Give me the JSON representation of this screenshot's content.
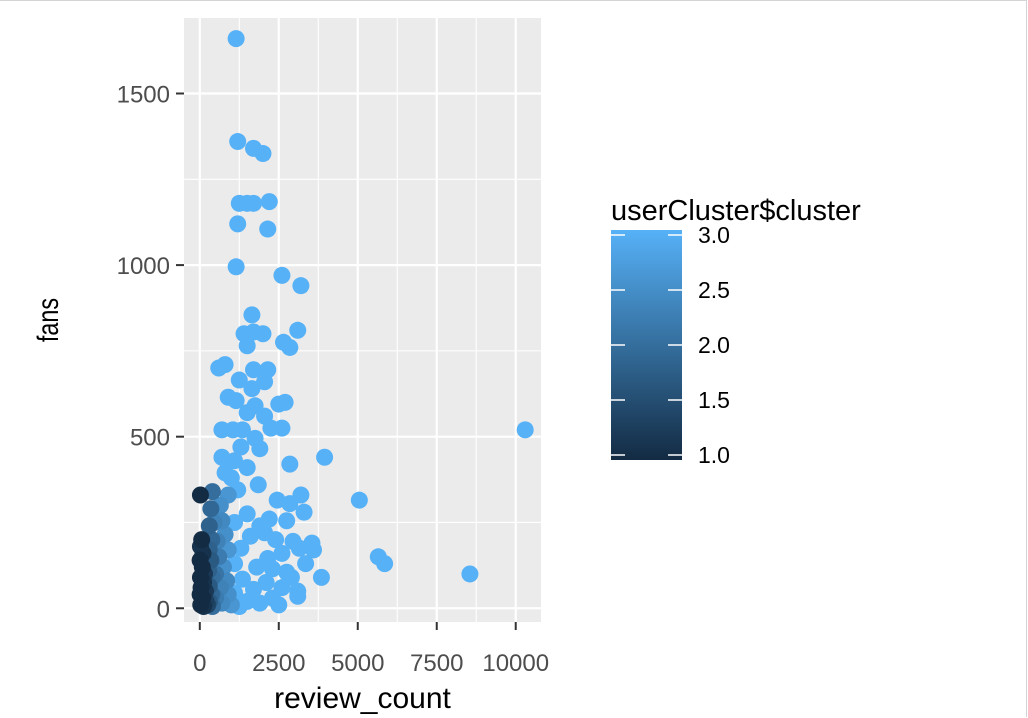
{
  "chart_data": {
    "type": "scatter",
    "xlabel": "review_count",
    "ylabel": "fans",
    "xlim": [
      -500,
      10800
    ],
    "ylim": [
      -40,
      1720
    ],
    "x_ticks": [
      0,
      2500,
      5000,
      7500,
      10000
    ],
    "x_tick_labels": [
      "0",
      "2500",
      "5000",
      "7500",
      "10000"
    ],
    "y_ticks": [
      0,
      500,
      1000,
      1500
    ],
    "y_tick_labels": [
      "0",
      "500",
      "1000",
      "1500"
    ],
    "grid": true,
    "legend": {
      "title": "userCluster$cluster",
      "placement": "right",
      "type": "colorbar",
      "range": [
        1.0,
        3.0
      ],
      "breaks": [
        1.0,
        1.5,
        2.0,
        2.5,
        3.0
      ],
      "break_labels": [
        "1.0",
        "1.5",
        "2.0",
        "2.5",
        "3.0"
      ],
      "low_color": "#132B43",
      "high_color": "#56B1F7"
    },
    "points": [
      {
        "x": 1150,
        "y": 1660,
        "c": 3
      },
      {
        "x": 1200,
        "y": 1360,
        "c": 3
      },
      {
        "x": 1700,
        "y": 1340,
        "c": 3
      },
      {
        "x": 2000,
        "y": 1325,
        "c": 3
      },
      {
        "x": 1250,
        "y": 1180,
        "c": 3
      },
      {
        "x": 1500,
        "y": 1180,
        "c": 3
      },
      {
        "x": 1700,
        "y": 1180,
        "c": 3
      },
      {
        "x": 2200,
        "y": 1185,
        "c": 3
      },
      {
        "x": 1200,
        "y": 1120,
        "c": 3
      },
      {
        "x": 2150,
        "y": 1105,
        "c": 3
      },
      {
        "x": 1150,
        "y": 995,
        "c": 3
      },
      {
        "x": 2600,
        "y": 970,
        "c": 3
      },
      {
        "x": 3200,
        "y": 940,
        "c": 3
      },
      {
        "x": 1650,
        "y": 855,
        "c": 3
      },
      {
        "x": 3100,
        "y": 810,
        "c": 3
      },
      {
        "x": 1400,
        "y": 800,
        "c": 3
      },
      {
        "x": 1700,
        "y": 805,
        "c": 3
      },
      {
        "x": 2000,
        "y": 800,
        "c": 3
      },
      {
        "x": 2650,
        "y": 775,
        "c": 3
      },
      {
        "x": 2850,
        "y": 760,
        "c": 3
      },
      {
        "x": 1500,
        "y": 765,
        "c": 3
      },
      {
        "x": 600,
        "y": 700,
        "c": 3
      },
      {
        "x": 800,
        "y": 710,
        "c": 3
      },
      {
        "x": 1700,
        "y": 695,
        "c": 3
      },
      {
        "x": 2150,
        "y": 695,
        "c": 3
      },
      {
        "x": 1250,
        "y": 665,
        "c": 3
      },
      {
        "x": 2050,
        "y": 660,
        "c": 3
      },
      {
        "x": 1650,
        "y": 640,
        "c": 3
      },
      {
        "x": 900,
        "y": 615,
        "c": 3
      },
      {
        "x": 1150,
        "y": 605,
        "c": 3
      },
      {
        "x": 1750,
        "y": 590,
        "c": 3
      },
      {
        "x": 2500,
        "y": 595,
        "c": 3
      },
      {
        "x": 2700,
        "y": 600,
        "c": 3
      },
      {
        "x": 1500,
        "y": 570,
        "c": 3
      },
      {
        "x": 2050,
        "y": 560,
        "c": 3
      },
      {
        "x": 700,
        "y": 520,
        "c": 3
      },
      {
        "x": 1050,
        "y": 520,
        "c": 3
      },
      {
        "x": 1350,
        "y": 520,
        "c": 3
      },
      {
        "x": 2250,
        "y": 525,
        "c": 3
      },
      {
        "x": 2600,
        "y": 525,
        "c": 3
      },
      {
        "x": 1750,
        "y": 495,
        "c": 3
      },
      {
        "x": 1300,
        "y": 470,
        "c": 3
      },
      {
        "x": 1900,
        "y": 465,
        "c": 3
      },
      {
        "x": 10300,
        "y": 520,
        "c": 3
      },
      {
        "x": 3950,
        "y": 440,
        "c": 3
      },
      {
        "x": 700,
        "y": 440,
        "c": 3
      },
      {
        "x": 1100,
        "y": 430,
        "c": 3
      },
      {
        "x": 2850,
        "y": 420,
        "c": 3
      },
      {
        "x": 1500,
        "y": 410,
        "c": 3
      },
      {
        "x": 800,
        "y": 395,
        "c": 3
      },
      {
        "x": 1000,
        "y": 380,
        "c": 3
      },
      {
        "x": 1850,
        "y": 360,
        "c": 3
      },
      {
        "x": 1200,
        "y": 345,
        "c": 3
      },
      {
        "x": 3200,
        "y": 330,
        "c": 3
      },
      {
        "x": 2450,
        "y": 315,
        "c": 3
      },
      {
        "x": 5050,
        "y": 315,
        "c": 3
      },
      {
        "x": 2850,
        "y": 305,
        "c": 3
      },
      {
        "x": 3300,
        "y": 280,
        "c": 3
      },
      {
        "x": 1500,
        "y": 275,
        "c": 3
      },
      {
        "x": 2200,
        "y": 260,
        "c": 3
      },
      {
        "x": 2750,
        "y": 255,
        "c": 3
      },
      {
        "x": 1100,
        "y": 250,
        "c": 3
      },
      {
        "x": 1900,
        "y": 240,
        "c": 3
      },
      {
        "x": 2050,
        "y": 220,
        "c": 3
      },
      {
        "x": 1600,
        "y": 210,
        "c": 3
      },
      {
        "x": 2400,
        "y": 200,
        "c": 3
      },
      {
        "x": 2950,
        "y": 195,
        "c": 3
      },
      {
        "x": 3550,
        "y": 190,
        "c": 3
      },
      {
        "x": 3150,
        "y": 175,
        "c": 3
      },
      {
        "x": 3600,
        "y": 170,
        "c": 3
      },
      {
        "x": 1300,
        "y": 175,
        "c": 3
      },
      {
        "x": 2600,
        "y": 160,
        "c": 3
      },
      {
        "x": 5650,
        "y": 150,
        "c": 3
      },
      {
        "x": 2150,
        "y": 145,
        "c": 3
      },
      {
        "x": 3350,
        "y": 130,
        "c": 3
      },
      {
        "x": 5850,
        "y": 130,
        "c": 3
      },
      {
        "x": 1100,
        "y": 130,
        "c": 3
      },
      {
        "x": 1800,
        "y": 120,
        "c": 3
      },
      {
        "x": 2300,
        "y": 115,
        "c": 3
      },
      {
        "x": 2750,
        "y": 105,
        "c": 3
      },
      {
        "x": 8550,
        "y": 100,
        "c": 3
      },
      {
        "x": 3850,
        "y": 90,
        "c": 3
      },
      {
        "x": 2900,
        "y": 90,
        "c": 3
      },
      {
        "x": 1350,
        "y": 85,
        "c": 3
      },
      {
        "x": 2100,
        "y": 75,
        "c": 3
      },
      {
        "x": 2600,
        "y": 60,
        "c": 3
      },
      {
        "x": 1700,
        "y": 55,
        "c": 3
      },
      {
        "x": 3100,
        "y": 50,
        "c": 3
      },
      {
        "x": 1100,
        "y": 45,
        "c": 3
      },
      {
        "x": 3100,
        "y": 35,
        "c": 3
      },
      {
        "x": 2300,
        "y": 30,
        "c": 3
      },
      {
        "x": 1500,
        "y": 20,
        "c": 3
      },
      {
        "x": 1900,
        "y": 15,
        "c": 3
      },
      {
        "x": 2500,
        "y": 10,
        "c": 3
      },
      {
        "x": 1250,
        "y": 5,
        "c": 3
      },
      {
        "x": 900,
        "y": 330,
        "c": 2.6
      },
      {
        "x": 650,
        "y": 300,
        "c": 2.5
      },
      {
        "x": 700,
        "y": 255,
        "c": 2.4
      },
      {
        "x": 450,
        "y": 250,
        "c": 2.3
      },
      {
        "x": 800,
        "y": 215,
        "c": 2.5
      },
      {
        "x": 550,
        "y": 195,
        "c": 2.3
      },
      {
        "x": 900,
        "y": 170,
        "c": 2.6
      },
      {
        "x": 600,
        "y": 150,
        "c": 2.2
      },
      {
        "x": 750,
        "y": 120,
        "c": 2.5
      },
      {
        "x": 500,
        "y": 100,
        "c": 2.1
      },
      {
        "x": 850,
        "y": 80,
        "c": 2.4
      },
      {
        "x": 650,
        "y": 60,
        "c": 2.3
      },
      {
        "x": 900,
        "y": 40,
        "c": 2.5
      },
      {
        "x": 500,
        "y": 30,
        "c": 2.2
      },
      {
        "x": 700,
        "y": 15,
        "c": 2.4
      },
      {
        "x": 1000,
        "y": 10,
        "c": 2.6
      },
      {
        "x": 400,
        "y": 340,
        "c": 2.0
      },
      {
        "x": 350,
        "y": 290,
        "c": 1.9
      },
      {
        "x": 300,
        "y": 240,
        "c": 1.8
      },
      {
        "x": 380,
        "y": 200,
        "c": 1.9
      },
      {
        "x": 300,
        "y": 170,
        "c": 1.8
      },
      {
        "x": 350,
        "y": 140,
        "c": 1.7
      },
      {
        "x": 280,
        "y": 110,
        "c": 1.8
      },
      {
        "x": 400,
        "y": 90,
        "c": 2.0
      },
      {
        "x": 300,
        "y": 65,
        "c": 1.7
      },
      {
        "x": 380,
        "y": 40,
        "c": 1.9
      },
      {
        "x": 300,
        "y": 20,
        "c": 1.7
      },
      {
        "x": 400,
        "y": 5,
        "c": 2.0
      },
      {
        "x": 20,
        "y": 330,
        "c": 1.0
      },
      {
        "x": 60,
        "y": 200,
        "c": 1.0
      },
      {
        "x": 20,
        "y": 180,
        "c": 1.1
      },
      {
        "x": 100,
        "y": 160,
        "c": 1.1
      },
      {
        "x": 10,
        "y": 140,
        "c": 1.0
      },
      {
        "x": 80,
        "y": 120,
        "c": 1.0
      },
      {
        "x": 150,
        "y": 100,
        "c": 1.2
      },
      {
        "x": 20,
        "y": 90,
        "c": 1.0
      },
      {
        "x": 120,
        "y": 75,
        "c": 1.1
      },
      {
        "x": 40,
        "y": 60,
        "c": 1.0
      },
      {
        "x": 180,
        "y": 50,
        "c": 1.2
      },
      {
        "x": 10,
        "y": 40,
        "c": 1.0
      },
      {
        "x": 90,
        "y": 30,
        "c": 1.0
      },
      {
        "x": 200,
        "y": 20,
        "c": 1.3
      },
      {
        "x": 30,
        "y": 10,
        "c": 1.0
      },
      {
        "x": 120,
        "y": 5,
        "c": 1.1
      },
      {
        "x": 250,
        "y": 10,
        "c": 1.4
      }
    ]
  }
}
